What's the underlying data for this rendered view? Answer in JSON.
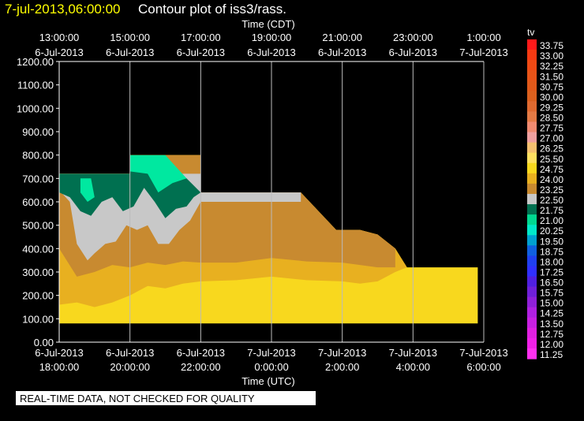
{
  "header": {
    "date": "7-jul-2013,06:00:00",
    "title": "Contour plot of iss3/rass."
  },
  "notice": "REAL-TIME DATA, NOT CHECKED FOR QUALITY",
  "chart_data": {
    "type": "heatmap",
    "top_axis_title": "Time (CDT)",
    "bottom_axis_title": "Time (UTC)",
    "colorbar_label": "tv",
    "ylim": [
      0,
      1200
    ],
    "xlim_utc_hours": [
      18,
      30
    ],
    "y_ticks": [
      "1200.00",
      "1100.00",
      "1000.00",
      "900.00",
      "800.00",
      "700.00",
      "600.00",
      "500.00",
      "400.00",
      "300.00",
      "200.00",
      "100.00",
      "0.00"
    ],
    "bottom_ticks": [
      {
        "time": "18:00:00",
        "date": "6-Jul-2013"
      },
      {
        "time": "20:00:00",
        "date": "6-Jul-2013"
      },
      {
        "time": "22:00:00",
        "date": "6-Jul-2013"
      },
      {
        "time": "0:00:00",
        "date": "7-Jul-2013"
      },
      {
        "time": "2:00:00",
        "date": "7-Jul-2013"
      },
      {
        "time": "4:00:00",
        "date": "7-Jul-2013"
      },
      {
        "time": "6:00:00",
        "date": "7-Jul-2013"
      }
    ],
    "top_ticks": [
      {
        "time": "13:00:00",
        "date": "6-Jul-2013"
      },
      {
        "time": "15:00:00",
        "date": "6-Jul-2013"
      },
      {
        "time": "17:00:00",
        "date": "6-Jul-2013"
      },
      {
        "time": "19:00:00",
        "date": "6-Jul-2013"
      },
      {
        "time": "21:00:00",
        "date": "6-Jul-2013"
      },
      {
        "time": "23:00:00",
        "date": "6-Jul-2013"
      },
      {
        "time": "1:00:00",
        "date": "7-Jul-2013"
      }
    ],
    "colorbar": [
      {
        "label": "33.75",
        "color": "#ff1a1a"
      },
      {
        "label": "33.00",
        "color": "#f73a12"
      },
      {
        "label": "32.25",
        "color": "#ef4a14"
      },
      {
        "label": "31.50",
        "color": "#e85418"
      },
      {
        "label": "30.75",
        "color": "#e0591a"
      },
      {
        "label": "30.00",
        "color": "#db601e"
      },
      {
        "label": "29.25",
        "color": "#e06a30"
      },
      {
        "label": "28.50",
        "color": "#e47a45"
      },
      {
        "label": "27.75",
        "color": "#f08a70"
      },
      {
        "label": "27.00",
        "color": "#f0a0a0"
      },
      {
        "label": "26.25",
        "color": "#f5c070"
      },
      {
        "label": "25.50",
        "color": "#ffe060"
      },
      {
        "label": "24.75",
        "color": "#f8d81e"
      },
      {
        "label": "24.00",
        "color": "#e8b020"
      },
      {
        "label": "23.25",
        "color": "#c88a30"
      },
      {
        "label": "22.50",
        "color": "#c8c8c8"
      },
      {
        "label": "21.75",
        "color": "#007050"
      },
      {
        "label": "21.00",
        "color": "#00d890"
      },
      {
        "label": "20.25",
        "color": "#00e8c8"
      },
      {
        "label": "19.50",
        "color": "#00a0d0"
      },
      {
        "label": "18.75",
        "color": "#1060e0"
      },
      {
        "label": "18.00",
        "color": "#2040f0"
      },
      {
        "label": "17.25",
        "color": "#3030ff"
      },
      {
        "label": "16.50",
        "color": "#5020e0"
      },
      {
        "label": "15.75",
        "color": "#7020d8"
      },
      {
        "label": "15.00",
        "color": "#9020d8"
      },
      {
        "label": "14.25",
        "color": "#b020e0"
      },
      {
        "label": "13.50",
        "color": "#c820e0"
      },
      {
        "label": "12.75",
        "color": "#e020e0"
      },
      {
        "label": "12.00",
        "color": "#f020e8"
      },
      {
        "label": "11.25",
        "color": "#ff30f0"
      }
    ],
    "regions": [
      {
        "tv_range": "24.00-26.25",
        "color": "#f8d81e",
        "poly": [
          [
            18.0,
            80
          ],
          [
            29.83,
            80
          ],
          [
            29.83,
            320
          ],
          [
            27.83,
            320
          ],
          [
            27.5,
            400
          ],
          [
            27.0,
            460
          ],
          [
            26.5,
            480
          ],
          [
            25.83,
            480
          ],
          [
            25.33,
            560
          ],
          [
            24.83,
            640
          ],
          [
            22.0,
            640
          ],
          [
            22.0,
            800
          ],
          [
            21.0,
            800
          ],
          [
            20.0,
            800
          ],
          [
            20.0,
            720
          ],
          [
            18.0,
            720
          ]
        ]
      },
      {
        "tv_range": "23.25-24.75",
        "color": "#e8b020",
        "poly": [
          [
            18.0,
            720
          ],
          [
            18.0,
            160
          ],
          [
            18.5,
            170
          ],
          [
            19.0,
            150
          ],
          [
            19.5,
            170
          ],
          [
            20.0,
            200
          ],
          [
            20.5,
            240
          ],
          [
            21.0,
            230
          ],
          [
            21.5,
            250
          ],
          [
            22.0,
            260
          ],
          [
            23.0,
            265
          ],
          [
            24.0,
            280
          ],
          [
            25.0,
            265
          ],
          [
            26.0,
            260
          ],
          [
            26.5,
            250
          ],
          [
            27.0,
            260
          ],
          [
            27.5,
            300
          ],
          [
            27.83,
            320
          ],
          [
            27.5,
            400
          ],
          [
            27.0,
            460
          ],
          [
            26.5,
            480
          ],
          [
            25.83,
            480
          ],
          [
            25.33,
            560
          ],
          [
            24.83,
            640
          ],
          [
            22.0,
            640
          ],
          [
            22.0,
            800
          ],
          [
            20.0,
            800
          ],
          [
            20.0,
            720
          ]
        ]
      },
      {
        "tv_range": "22.50-23.25",
        "color": "#c88a30",
        "poly": [
          [
            18.0,
            720
          ],
          [
            18.0,
            400
          ],
          [
            18.5,
            280
          ],
          [
            19.0,
            300
          ],
          [
            19.5,
            330
          ],
          [
            20.0,
            320
          ],
          [
            20.5,
            340
          ],
          [
            21.0,
            330
          ],
          [
            21.5,
            345
          ],
          [
            22.0,
            340
          ],
          [
            23.0,
            340
          ],
          [
            24.0,
            360
          ],
          [
            25.0,
            345
          ],
          [
            26.0,
            340
          ],
          [
            26.5,
            330
          ],
          [
            27.0,
            320
          ],
          [
            27.5,
            320
          ],
          [
            27.5,
            400
          ],
          [
            27.0,
            460
          ],
          [
            26.5,
            480
          ],
          [
            25.83,
            480
          ],
          [
            25.33,
            560
          ],
          [
            24.83,
            640
          ],
          [
            22.0,
            640
          ],
          [
            22.0,
            800
          ],
          [
            20.0,
            800
          ],
          [
            20.0,
            720
          ]
        ]
      },
      {
        "tv_range": "22.50-23.25",
        "color": "#c88a30",
        "poly": [
          [
            22.2,
            480
          ],
          [
            23.0,
            600
          ],
          [
            24.5,
            570
          ],
          [
            25.5,
            500
          ],
          [
            25.4,
            400
          ],
          [
            24.0,
            380
          ],
          [
            23.0,
            410
          ],
          [
            22.2,
            440
          ]
        ]
      },
      {
        "tv_range": "21.75-22.50",
        "color": "#c8c8c8",
        "poly": [
          [
            18.0,
            650
          ],
          [
            18.3,
            600
          ],
          [
            18.5,
            420
          ],
          [
            18.8,
            350
          ],
          [
            19.0,
            380
          ],
          [
            19.3,
            420
          ],
          [
            19.6,
            430
          ],
          [
            19.9,
            500
          ],
          [
            20.2,
            480
          ],
          [
            20.5,
            500
          ],
          [
            20.8,
            420
          ],
          [
            21.1,
            420
          ],
          [
            21.4,
            480
          ],
          [
            21.7,
            520
          ],
          [
            22.0,
            600
          ],
          [
            22.0,
            640
          ],
          [
            24.83,
            640
          ],
          [
            24.83,
            600
          ],
          [
            22.0,
            600
          ],
          [
            22.0,
            720
          ],
          [
            20.0,
            720
          ],
          [
            18.0,
            720
          ]
        ]
      },
      {
        "tv_range": "21.00-21.75",
        "color": "#007050",
        "poly": [
          [
            18.0,
            720
          ],
          [
            18.0,
            640
          ],
          [
            18.3,
            620
          ],
          [
            18.6,
            560
          ],
          [
            18.9,
            540
          ],
          [
            19.2,
            600
          ],
          [
            19.5,
            620
          ],
          [
            19.8,
            560
          ],
          [
            20.1,
            580
          ],
          [
            20.4,
            660
          ],
          [
            20.7,
            600
          ],
          [
            21.0,
            530
          ],
          [
            21.3,
            570
          ],
          [
            21.6,
            580
          ],
          [
            21.8,
            620
          ],
          [
            22.0,
            640
          ],
          [
            21.6,
            700
          ],
          [
            21.0,
            760
          ],
          [
            20.5,
            770
          ],
          [
            20.0,
            800
          ],
          [
            20.0,
            720
          ]
        ]
      },
      {
        "tv_range": "20.25-21.00",
        "color": "#00e8a0",
        "poly": [
          [
            20.0,
            800
          ],
          [
            21.0,
            800
          ],
          [
            21.6,
            700
          ],
          [
            21.2,
            680
          ],
          [
            20.8,
            640
          ],
          [
            20.5,
            720
          ],
          [
            20.0,
            730
          ]
        ]
      },
      {
        "tv_range": "20.25-21.00",
        "color": "#00e8a0",
        "poly": [
          [
            18.6,
            700
          ],
          [
            18.9,
            700
          ],
          [
            19.0,
            620
          ],
          [
            18.8,
            600
          ],
          [
            18.6,
            640
          ]
        ]
      }
    ]
  }
}
